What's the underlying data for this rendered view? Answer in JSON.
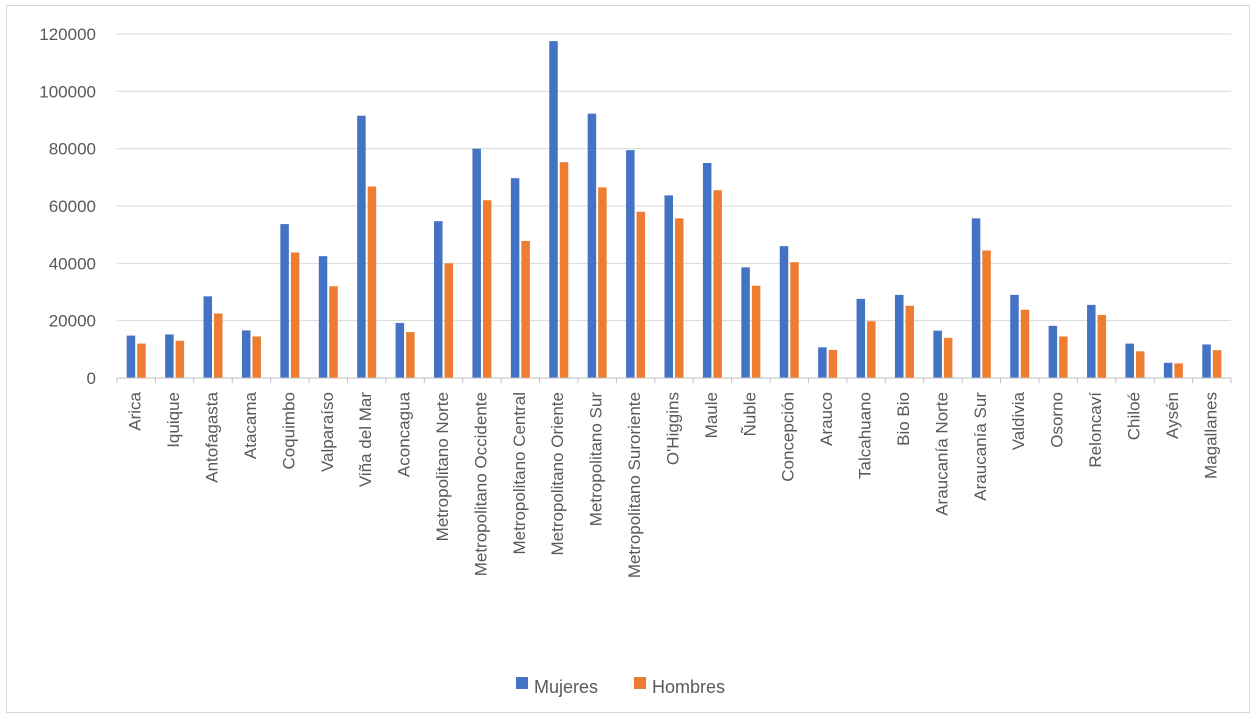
{
  "chart_data": {
    "type": "bar",
    "title": "",
    "xlabel": "",
    "ylabel": "",
    "ylim": [
      0,
      120000
    ],
    "yticks": [
      0,
      20000,
      40000,
      60000,
      80000,
      100000,
      120000
    ],
    "grid": true,
    "legend_position": "bottom",
    "categories": [
      "Arica",
      "Iquique",
      "Antofagasta",
      "Atacama",
      "Coquimbo",
      "Valparaíso",
      "Viña del Mar",
      "Aconcagua",
      "Metropolitano Norte",
      "Metropolitano Occidente",
      "Metropolitano Central",
      "Metropolitano Oriente",
      "Metropolitano Sur",
      "Metropolitano Suroriente",
      "O'Higgins",
      "Maule",
      "Ñuble",
      "Concepción",
      "Arauco",
      "Talcahuano",
      "Bio Bio",
      "Araucanía Norte",
      "Araucanía Sur",
      "Valdivia",
      "Osorno",
      "Reloncaví",
      "Chiloé",
      "Aysén",
      "Magallanes"
    ],
    "series": [
      {
        "name": "Mujeres",
        "color": "#4472C4",
        "values": [
          14800,
          15200,
          28500,
          16600,
          53700,
          42500,
          91500,
          19200,
          54700,
          80000,
          69700,
          117500,
          92200,
          79500,
          63700,
          75000,
          38600,
          46000,
          10700,
          27600,
          29000,
          16500,
          55700,
          29000,
          18200,
          25500,
          12000,
          5300,
          11700
        ]
      },
      {
        "name": "Hombres",
        "color": "#ED7D31",
        "values": [
          12000,
          13000,
          22500,
          14500,
          43800,
          32000,
          66800,
          16000,
          40000,
          62000,
          47800,
          75300,
          66500,
          58000,
          55700,
          65500,
          32200,
          40400,
          9800,
          19800,
          25200,
          14000,
          44500,
          23800,
          14500,
          22000,
          9300,
          5100,
          9700
        ]
      }
    ]
  }
}
